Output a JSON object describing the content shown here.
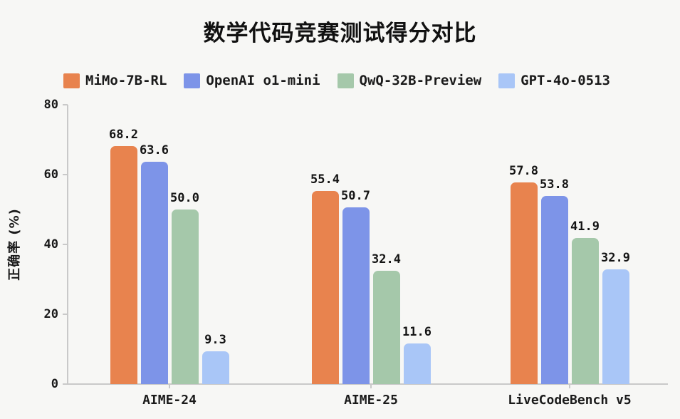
{
  "title": "数学代码竞赛测试得分对比",
  "ylabel": "正确率 (%)",
  "colors": {
    "background": "#f7f7f5",
    "axis": "#c9c9c9",
    "text": "#1a1a1a",
    "series_orange": "#e8834e",
    "series_blue": "#7d94e8",
    "series_green": "#a5c8aa",
    "series_lightblue": "#a9c6f7"
  },
  "chart_data": {
    "type": "bar",
    "title": "数学代码竞赛测试得分对比",
    "xlabel": "",
    "ylabel": "正确率 (%)",
    "categories": [
      "AIME-24",
      "AIME-25",
      "LiveCodeBench v5"
    ],
    "series": [
      {
        "name": "MiMo-7B-RL",
        "color": "#e8834e",
        "values": [
          68.2,
          55.4,
          57.8
        ]
      },
      {
        "name": "OpenAI o1-mini",
        "color": "#7d94e8",
        "values": [
          63.6,
          50.7,
          53.8
        ]
      },
      {
        "name": "QwQ-32B-Preview",
        "color": "#a5c8aa",
        "values": [
          50.0,
          32.4,
          41.9
        ]
      },
      {
        "name": "GPT-4o-0513",
        "color": "#a9c6f7",
        "values": [
          9.3,
          11.6,
          32.9
        ]
      }
    ],
    "ylim": [
      0,
      80
    ],
    "yticks": [
      0,
      20,
      40,
      60,
      80
    ],
    "grid": false,
    "legend_position": "top-left",
    "bar_value_labels": [
      "68.2",
      "63.6",
      "50.0",
      "9.3",
      "55.4",
      "50.7",
      "32.4",
      "11.6",
      "57.8",
      "53.8",
      "41.9",
      "32.9"
    ]
  }
}
